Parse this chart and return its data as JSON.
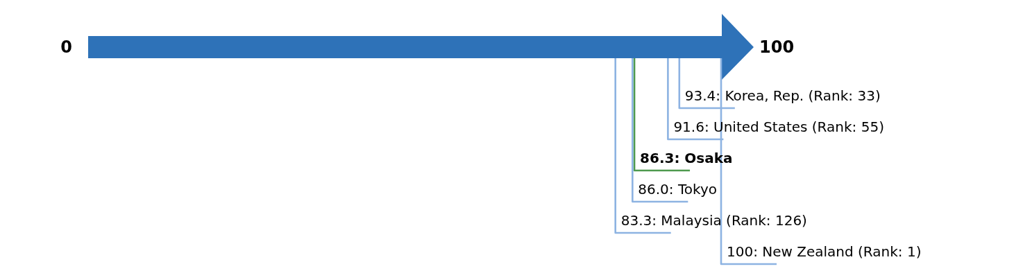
{
  "chart_data": {
    "type": "other",
    "categories": [
      "Korea, Rep. (Rank: 33)",
      "United States (Rank: 55)",
      "Osaka",
      "Tokyo",
      "Malaysia (Rank: 126)",
      "New Zealand (Rank: 1)"
    ],
    "values": [
      93.4,
      91.6,
      86.3,
      86.0,
      83.3,
      100
    ],
    "value_labels": [
      "93.4:",
      "91.6:",
      "86.3:",
      "86.0:",
      "83.3:",
      "100:"
    ],
    "colors": [
      "#8db3e2",
      "#8db3e2",
      "#4e9a4e",
      "#8db3e2",
      "#8db3e2",
      "#8db3e2"
    ],
    "annotations": [
      "0",
      "100"
    ]
  }
}
